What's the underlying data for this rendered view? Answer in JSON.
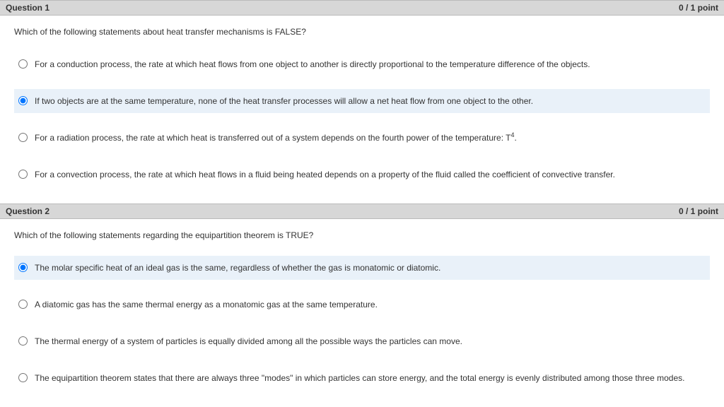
{
  "questions": [
    {
      "title": "Question 1",
      "points": "0 / 1 point",
      "prompt": "Which of the following statements about heat transfer mechanisms is FALSE?",
      "selectedIndex": 1,
      "choices": [
        {
          "text": "For a conduction process, the rate at which heat flows from one object to another is directly proportional to the temperature difference of the objects."
        },
        {
          "text": "If two objects are at the same temperature, none of the heat transfer processes will allow a net heat flow from one object to the other."
        },
        {
          "text": "For a radiation process, the rate at which heat is transferred out of a system depends on the fourth power of the temperature: T",
          "sup": "4",
          "after": "."
        },
        {
          "text": "For a convection process, the rate at which heat flows in a fluid being heated depends on a property of the fluid called the coefficient of convective transfer."
        }
      ]
    },
    {
      "title": "Question 2",
      "points": "0 / 1 point",
      "prompt": "Which of the following statements regarding the equipartition theorem is TRUE?",
      "selectedIndex": 0,
      "choices": [
        {
          "text": "The molar specific heat of an ideal gas is the same, regardless of whether the gas is monatomic or diatomic."
        },
        {
          "text": "A diatomic gas has the same thermal energy as a monatomic gas at the same temperature."
        },
        {
          "text": "The thermal energy of a system of particles is equally divided among all the possible ways the particles can move."
        },
        {
          "text": "The equipartition theorem states that there are always three \"modes\" in which particles can store energy, and the total energy is evenly distributed among those three modes."
        }
      ]
    }
  ]
}
